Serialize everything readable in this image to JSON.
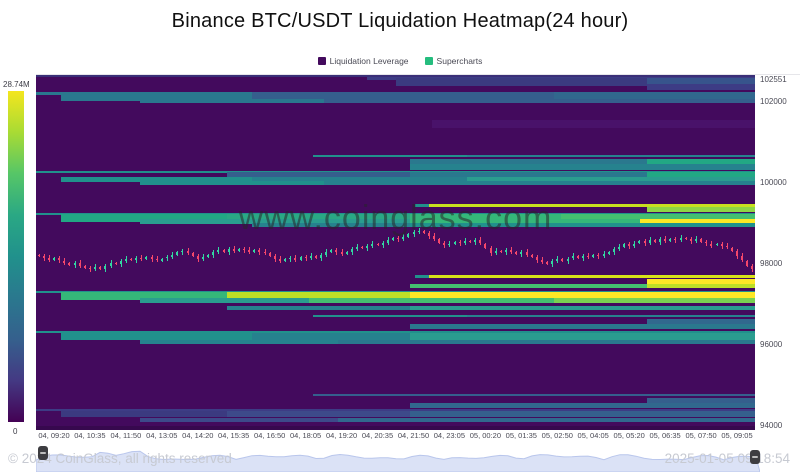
{
  "title": "Binance BTC/USDT Liquidation Heatmap(24 hour)",
  "legend": [
    {
      "label": "Liquidation Leverage",
      "color": "#430a5d"
    },
    {
      "label": "Supercharts",
      "color": "#25bd7e"
    }
  ],
  "watermark": "www.coinglass.com",
  "footer": {
    "copyright": "© 2024 CoinGlass, all rights reserved",
    "timestamp": "2025-01-05 09:18:54"
  },
  "chart_data": {
    "type": "heatmap",
    "subtype": "liquidation-heatmap-with-candlestick-overlay",
    "colorbar": {
      "max_label": "28.74M",
      "min_label": "0",
      "stops": [
        "#f4e61e",
        "#a8db34",
        "#56c667",
        "#2aa884",
        "#21918c",
        "#2a788e",
        "#35608d",
        "#443983",
        "#440154"
      ]
    },
    "background_color": "#430a5d",
    "y_axis": {
      "min": 93875,
      "max": 102640,
      "ticks": [
        102551,
        102000,
        100000,
        98000,
        96000,
        94000
      ]
    },
    "x_labels": [
      "04, 09:20",
      "04, 10:35",
      "04, 11:50",
      "04, 13:05",
      "04, 14:20",
      "04, 15:35",
      "04, 16:50",
      "04, 18:05",
      "04, 19:20",
      "04, 20:35",
      "04, 21:50",
      "04, 23:05",
      "05, 00:20",
      "05, 01:35",
      "05, 02:50",
      "05, 04:05",
      "05, 05:20",
      "05, 06:35",
      "05, 07:50",
      "05, 09:05"
    ],
    "heat_rows": [
      {
        "p": 102620,
        "h": 2,
        "segs": [
          [
            0,
            1,
            "#3a2f78"
          ]
        ]
      },
      {
        "p": 102560,
        "h": 3,
        "segs": [
          [
            0.46,
            1,
            "#3d3c85"
          ]
        ]
      },
      {
        "p": 102465,
        "h": 8,
        "segs": [
          [
            0.5,
            0.85,
            "#3b3a80"
          ],
          [
            0.85,
            1,
            "#37548c"
          ]
        ]
      },
      {
        "p": 102345,
        "h": 6,
        "segs": [
          [
            0.85,
            1,
            "#3d3c85"
          ]
        ]
      },
      {
        "p": 102195,
        "h": 3,
        "segs": [
          [
            0,
            0.72,
            "#2a788e"
          ],
          [
            0.72,
            1,
            "#31688e"
          ]
        ]
      },
      {
        "p": 102100,
        "h": 9,
        "segs": [
          [
            0.035,
            0.3,
            "#2a788e"
          ],
          [
            0.3,
            0.72,
            "#355f8d"
          ],
          [
            0.72,
            1,
            "#31688e"
          ]
        ]
      },
      {
        "p": 102000,
        "h": 4,
        "segs": [
          [
            0.145,
            0.4,
            "#2a788e"
          ],
          [
            0.4,
            1,
            "#355f8d"
          ]
        ]
      },
      {
        "p": 101420,
        "h": 8,
        "segs": [
          [
            0.55,
            1,
            "#49126a"
          ]
        ]
      },
      {
        "p": 100650,
        "h": 2,
        "segs": [
          [
            0.385,
            0.6,
            "#21918c"
          ],
          [
            0.6,
            1,
            "#26828e"
          ]
        ]
      },
      {
        "p": 100480,
        "h": 7,
        "segs": [
          [
            0.52,
            0.85,
            "#2a788e"
          ],
          [
            0.85,
            1,
            "#22a884"
          ]
        ]
      },
      {
        "p": 100360,
        "h": 6,
        "segs": [
          [
            0.52,
            1,
            "#26828e"
          ]
        ]
      },
      {
        "p": 100250,
        "h": 2,
        "segs": [
          [
            0,
            1,
            "#21918c"
          ]
        ]
      },
      {
        "p": 100150,
        "h": 8,
        "segs": [
          [
            0.265,
            0.52,
            "#355f8d"
          ],
          [
            0.52,
            0.85,
            "#2a788e"
          ],
          [
            0.85,
            1,
            "#22a884"
          ]
        ]
      },
      {
        "p": 100060,
        "h": 5,
        "segs": [
          [
            0.035,
            0.3,
            "#21918c"
          ],
          [
            0.3,
            0.6,
            "#26828e"
          ],
          [
            0.6,
            1,
            "#2a9d8f"
          ]
        ]
      },
      {
        "p": 99980,
        "h": 4,
        "segs": [
          [
            0.145,
            0.4,
            "#21918c"
          ],
          [
            0.4,
            1,
            "#26828e"
          ]
        ]
      },
      {
        "p": 99430,
        "h": 3,
        "segs": [
          [
            0.527,
            0.547,
            "#21918c"
          ],
          [
            0.547,
            1,
            "#c8e020"
          ]
        ]
      },
      {
        "p": 99330,
        "h": 5,
        "segs": [
          [
            0.85,
            1,
            "#8ed645"
          ]
        ]
      },
      {
        "p": 99200,
        "h": 2,
        "segs": [
          [
            0,
            1,
            "#21918c"
          ]
        ]
      },
      {
        "p": 99115,
        "h": 8,
        "segs": [
          [
            0.035,
            0.265,
            "#22a884"
          ],
          [
            0.265,
            0.52,
            "#2aa884"
          ],
          [
            0.52,
            0.73,
            "#35b779"
          ],
          [
            0.73,
            1,
            "#44bf70"
          ]
        ]
      },
      {
        "p": 99030,
        "h": 5,
        "segs": [
          [
            0.145,
            0.52,
            "#2a9d8f"
          ],
          [
            0.52,
            0.84,
            "#35b779"
          ],
          [
            0.84,
            1,
            "#fde725"
          ]
        ]
      },
      {
        "p": 98935,
        "h": 4,
        "segs": [
          [
            0.3,
            0.52,
            "#26828e"
          ],
          [
            0.52,
            1,
            "#21918c"
          ]
        ]
      },
      {
        "p": 97660,
        "h": 3,
        "segs": [
          [
            0.527,
            0.547,
            "#21918c"
          ],
          [
            0.547,
            1,
            "#d8e219"
          ]
        ]
      },
      {
        "p": 97550,
        "h": 5,
        "segs": [
          [
            0.85,
            1,
            "#fde725"
          ]
        ]
      },
      {
        "p": 97420,
        "h": 4,
        "segs": [
          [
            0.52,
            0.85,
            "#44bf70"
          ],
          [
            0.85,
            1,
            "#bddf26"
          ]
        ]
      },
      {
        "p": 97290,
        "h": 2,
        "segs": [
          [
            0,
            1,
            "#21918c"
          ]
        ]
      },
      {
        "p": 97185,
        "h": 8,
        "segs": [
          [
            0.035,
            0.265,
            "#35b779"
          ],
          [
            0.265,
            0.52,
            "#bddf26"
          ],
          [
            0.52,
            1,
            "#fde725"
          ]
        ]
      },
      {
        "p": 97070,
        "h": 5,
        "segs": [
          [
            0.145,
            0.38,
            "#2a9d8f"
          ],
          [
            0.38,
            0.72,
            "#44bf70"
          ],
          [
            0.72,
            1,
            "#7ad151"
          ]
        ]
      },
      {
        "p": 96900,
        "h": 4,
        "segs": [
          [
            0.265,
            0.52,
            "#26828e"
          ],
          [
            0.52,
            1,
            "#2a9d8f"
          ]
        ]
      },
      {
        "p": 96700,
        "h": 2,
        "segs": [
          [
            0.385,
            0.6,
            "#21918c"
          ],
          [
            0.6,
            1,
            "#26828e"
          ]
        ]
      },
      {
        "p": 96550,
        "h": 6,
        "segs": [
          [
            0.85,
            1,
            "#31688e"
          ]
        ]
      },
      {
        "p": 96420,
        "h": 5,
        "segs": [
          [
            0.52,
            1,
            "#2a788e"
          ]
        ]
      },
      {
        "p": 96300,
        "h": 2,
        "segs": [
          [
            0,
            1,
            "#21918c"
          ]
        ]
      },
      {
        "p": 96190,
        "h": 7,
        "segs": [
          [
            0.035,
            0.3,
            "#21918c"
          ],
          [
            0.3,
            0.52,
            "#26828e"
          ],
          [
            0.52,
            1,
            "#2a9d8f"
          ]
        ]
      },
      {
        "p": 96060,
        "h": 4,
        "segs": [
          [
            0.145,
            0.42,
            "#26828e"
          ],
          [
            0.42,
            1,
            "#2a788e"
          ]
        ]
      },
      {
        "p": 94730,
        "h": 2,
        "segs": [
          [
            0.385,
            1,
            "#355f8d"
          ]
        ]
      },
      {
        "p": 94600,
        "h": 5,
        "segs": [
          [
            0.85,
            1,
            "#355f8d"
          ]
        ]
      },
      {
        "p": 94480,
        "h": 5,
        "segs": [
          [
            0.52,
            1,
            "#31688e"
          ]
        ]
      },
      {
        "p": 94370,
        "h": 2,
        "segs": [
          [
            0,
            1,
            "#3d3c85"
          ]
        ]
      },
      {
        "p": 94260,
        "h": 6,
        "segs": [
          [
            0.035,
            0.265,
            "#3b3a80"
          ],
          [
            0.265,
            0.52,
            "#3d4a8a"
          ],
          [
            0.52,
            1,
            "#355f8d"
          ]
        ]
      },
      {
        "p": 94120,
        "h": 4,
        "segs": [
          [
            0.145,
            0.42,
            "#3d4a8a"
          ],
          [
            0.42,
            1,
            "#31688e"
          ]
        ]
      },
      {
        "p": 93930,
        "h": 4,
        "segs": [
          [
            0,
            1,
            "#37094e"
          ]
        ]
      }
    ],
    "candles": {
      "up_color": "#33d6a1",
      "down_color": "#f4476b",
      "closes": [
        98160,
        98120,
        98080,
        98130,
        98060,
        98000,
        97950,
        97990,
        97920,
        97880,
        97850,
        97890,
        97860,
        97930,
        98000,
        97960,
        98040,
        98100,
        98060,
        98120,
        98090,
        98140,
        98100,
        98060,
        98110,
        98150,
        98190,
        98260,
        98300,
        98250,
        98180,
        98100,
        98140,
        98190,
        98260,
        98320,
        98280,
        98340,
        98300,
        98350,
        98310,
        98270,
        98320,
        98280,
        98240,
        98180,
        98100,
        98040,
        98090,
        98130,
        98080,
        98140,
        98110,
        98160,
        98130,
        98200,
        98280,
        98330,
        98270,
        98220,
        98280,
        98350,
        98400,
        98360,
        98420,
        98480,
        98440,
        98500,
        98560,
        98620,
        98580,
        98650,
        98720,
        98760,
        98800,
        98740,
        98660,
        98580,
        98500,
        98440,
        98480,
        98530,
        98490,
        98550,
        98510,
        98560,
        98480,
        98360,
        98250,
        98300,
        98260,
        98310,
        98270,
        98220,
        98260,
        98200,
        98150,
        98080,
        98020,
        97980,
        98040,
        98090,
        98050,
        98110,
        98160,
        98120,
        98180,
        98140,
        98200,
        98160,
        98220,
        98280,
        98340,
        98400,
        98460,
        98420,
        98480,
        98540,
        98500,
        98560,
        98520,
        98580,
        98540,
        98600,
        98560,
        98620,
        98580,
        98540,
        98580,
        98520,
        98480,
        98430,
        98470,
        98420,
        98380,
        98300,
        98180,
        98060,
        97920,
        97860
      ]
    }
  }
}
